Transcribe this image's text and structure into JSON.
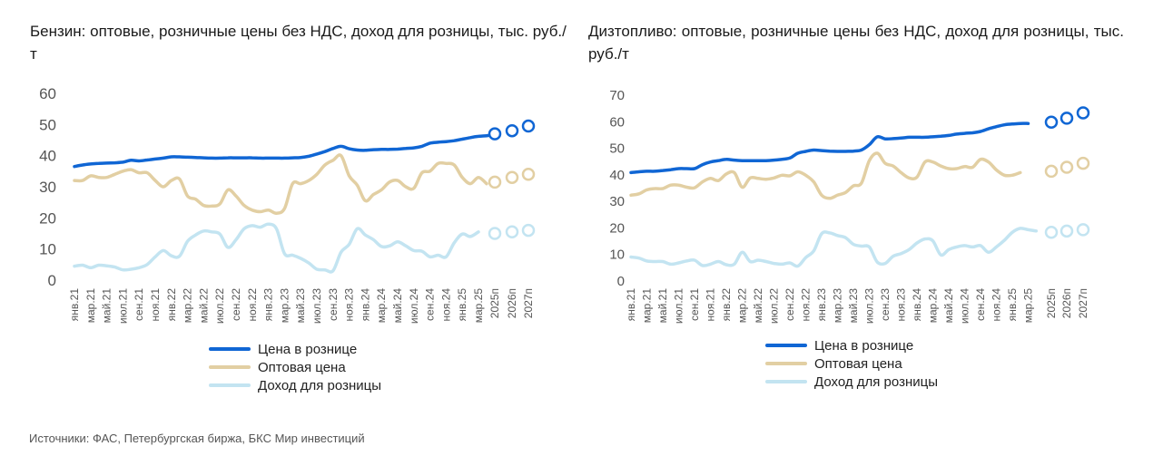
{
  "colors": {
    "retail": "#1066d4",
    "wholesale": "#e2cfa3",
    "income": "#c3e4f1",
    "grid_text": "#555555"
  },
  "source": "Источники: ФАС, Петербургская биржа, БКС Мир инвестиций",
  "charts": [
    {
      "title": "Бензин: оптовые, розничные цены без НДС, доход для розницы, тыс. руб./т",
      "legend": [
        "Цена в рознице",
        "Оптовая цена",
        "Доход для розницы"
      ]
    },
    {
      "title": "Дизтопливо: оптовые, розничные цены без НДС, доход для розницы, тыс. руб./т",
      "legend": [
        "Цена в рознице",
        "Оптовая цена",
        "Доход для розницы"
      ]
    }
  ],
  "chart_data": [
    {
      "type": "line",
      "title": "Бензин: оптовые, розничные цены без НДС, доход для розницы, тыс. руб./т",
      "ylim": [
        0,
        60
      ],
      "yticks": [
        0,
        10,
        20,
        30,
        40,
        50,
        60
      ],
      "x_labels": [
        "янв.21",
        "мар.21",
        "май.21",
        "июл.21",
        "сен.21",
        "ноя.21",
        "янв.22",
        "мар.22",
        "май.22",
        "июл.22",
        "сен.22",
        "ноя.22",
        "янв.23",
        "мар.23",
        "май.23",
        "июл.23",
        "сен.23",
        "ноя.23",
        "янв.24",
        "мар.24",
        "май.24",
        "июл.24",
        "сен.24",
        "ноя.24",
        "янв.25",
        "мар.25",
        "2025п",
        "2026п",
        "2027п"
      ],
      "series": [
        {
          "name": "Цена в рознице",
          "color": "#1066d4",
          "monthly": [
            36.5,
            37,
            37.3,
            37.5,
            37.6,
            37.7,
            37.9,
            38.5,
            38.3,
            38.6,
            38.9,
            39.2,
            39.6,
            39.6,
            39.5,
            39.4,
            39.3,
            39.2,
            39.2,
            39.3,
            39.3,
            39.3,
            39.3,
            39.2,
            39.2,
            39.2,
            39.2,
            39.3,
            39.4,
            39.8,
            40.5,
            41.3,
            42.3,
            43,
            42.2,
            41.8,
            41.7,
            41.9,
            42,
            42,
            42.1,
            42.3,
            42.5,
            43,
            44,
            44.3,
            44.5,
            44.8,
            45.3,
            45.8,
            46.2,
            46.4,
            46.7
          ],
          "forecast": [
            47,
            48,
            49.5
          ]
        },
        {
          "name": "Оптовая цена",
          "color": "#e2cfa3",
          "monthly": [
            32,
            32,
            33.5,
            33,
            33,
            34,
            35,
            35.5,
            34.5,
            34.5,
            32,
            30,
            32,
            32.5,
            27,
            26,
            24,
            23.8,
            24.5,
            29,
            27,
            24,
            22.5,
            22,
            22.5,
            21.5,
            23,
            31,
            31,
            32,
            34,
            37,
            38.5,
            40,
            33.5,
            30.5,
            25.5,
            27.5,
            29,
            31.5,
            32,
            30,
            29.5,
            34.5,
            35,
            37.5,
            37.5,
            37,
            33,
            31,
            33,
            31
          ],
          "forecast": [
            31.5,
            33,
            34
          ]
        },
        {
          "name": "Доход для розницы",
          "color": "#c3e4f1",
          "monthly": [
            4.5,
            4.8,
            4,
            4.8,
            4.6,
            4.2,
            3.3,
            3.5,
            4,
            5,
            7.5,
            9.5,
            7.8,
            7.7,
            12.5,
            14.5,
            15.8,
            15.5,
            14.8,
            10.5,
            13,
            16.5,
            17.5,
            17,
            18,
            16.5,
            8.5,
            8,
            7,
            5.5,
            3.5,
            3.3,
            3,
            9,
            11.5,
            16.5,
            14.5,
            13,
            10.8,
            11,
            12.3,
            11,
            9.5,
            9.3,
            7.5,
            8,
            7.5,
            12,
            14.8,
            14,
            15.5
          ],
          "forecast": [
            15,
            15.5,
            16
          ]
        }
      ]
    },
    {
      "type": "line",
      "title": "Дизтопливо: оптовые, розничные цены без НДС, доход для розницы, тыс. руб./т",
      "ylim": [
        0,
        70
      ],
      "yticks": [
        0,
        10,
        20,
        30,
        40,
        50,
        60,
        70
      ],
      "x_labels": [
        "янв.21",
        "мар.21",
        "май.21",
        "июл.21",
        "сен.21",
        "ноя.21",
        "янв.22",
        "мар.22",
        "май.22",
        "июл.22",
        "сен.22",
        "ноя.22",
        "янв.23",
        "мар.23",
        "май.23",
        "июл.23",
        "сен.23",
        "ноя.23",
        "янв.24",
        "мар.24",
        "май.24",
        "июл.24",
        "сен.24",
        "ноя.24",
        "янв.25",
        "мар.25",
        "2025п",
        "2026п",
        "2027п"
      ],
      "series": [
        {
          "name": "Цена в рознице",
          "color": "#1066d4",
          "monthly": [
            40.5,
            40.8,
            41,
            41,
            41.3,
            41.6,
            42,
            42,
            42,
            43.5,
            44.5,
            45,
            45.5,
            45.2,
            45,
            45,
            45,
            45,
            45.2,
            45.5,
            46,
            47.8,
            48.5,
            49,
            48.8,
            48.6,
            48.5,
            48.5,
            48.6,
            49,
            51,
            54,
            53.2,
            53.3,
            53.5,
            53.8,
            53.8,
            53.8,
            54,
            54.2,
            54.5,
            55,
            55.3,
            55.5,
            56,
            57,
            57.8,
            58.5,
            58.8,
            59,
            59
          ],
          "forecast": [
            59.5,
            61,
            63
          ]
        },
        {
          "name": "Оптовая цена",
          "color": "#e2cfa3",
          "monthly": [
            32,
            32.5,
            34,
            34.5,
            34.5,
            35.8,
            35.8,
            35,
            34.8,
            37,
            38.3,
            37.5,
            40,
            40.5,
            35,
            38.5,
            38.3,
            38,
            38.5,
            39.5,
            39.3,
            40.8,
            39.5,
            37,
            32,
            30.8,
            32,
            33,
            35.5,
            36.5,
            45,
            47.8,
            44,
            43,
            40.5,
            38.5,
            38.8,
            44.5,
            44.5,
            43,
            42,
            42,
            42.8,
            42.5,
            45.5,
            44.5,
            41.5,
            39.5,
            39.5,
            40.5
          ],
          "forecast": [
            41,
            42.5,
            44
          ]
        },
        {
          "name": "Доход для розницы",
          "color": "#c3e4f1",
          "monthly": [
            8.7,
            8.3,
            7.2,
            7,
            7,
            6,
            6.5,
            7.2,
            7.5,
            5.5,
            6,
            7,
            5.8,
            6,
            10.5,
            7,
            7.5,
            7,
            6.3,
            6,
            6.5,
            5.3,
            8.5,
            11,
            17.5,
            17.8,
            16.8,
            16,
            13.5,
            12.8,
            12.5,
            6.8,
            6.3,
            9,
            10,
            11.5,
            14,
            15.5,
            14.8,
            9.5,
            11.5,
            12.5,
            13,
            12.5,
            13,
            10.5,
            12.5,
            15,
            18,
            19.5,
            19,
            18.5
          ],
          "forecast": [
            18,
            18.5,
            19
          ]
        }
      ]
    }
  ]
}
